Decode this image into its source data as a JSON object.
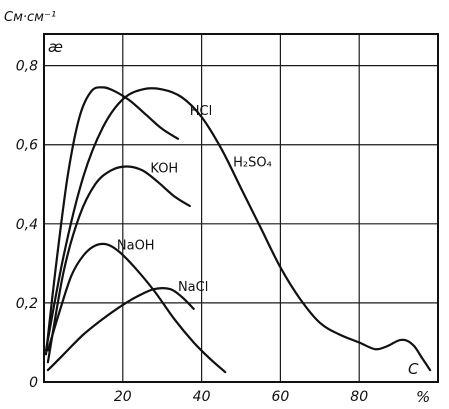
{
  "chart_data": {
    "type": "line",
    "title": "",
    "xlabel": "C",
    "x_unit": "%",
    "ylabel": "æ",
    "y_unit": "См·см⁻¹",
    "xlim": [
      0,
      100
    ],
    "ylim": [
      0,
      0.88
    ],
    "grid": true,
    "x_ticks": [
      {
        "value": 20,
        "label": "20"
      },
      {
        "value": 40,
        "label": "40"
      },
      {
        "value": 60,
        "label": "60"
      },
      {
        "value": 80,
        "label": "80"
      }
    ],
    "y_ticks": [
      {
        "value": 0,
        "label": "0"
      },
      {
        "value": 0.2,
        "label": "0,2"
      },
      {
        "value": 0.4,
        "label": "0,4"
      },
      {
        "value": 0.6,
        "label": "0,6"
      },
      {
        "value": 0.8,
        "label": "0,8"
      }
    ],
    "series": [
      {
        "name": "HCl",
        "label_text": "HCl",
        "label_at": [
          37,
          0.675
        ],
        "points": [
          [
            0.5,
            0.07
          ],
          [
            3,
            0.29
          ],
          [
            6,
            0.52
          ],
          [
            9,
            0.67
          ],
          [
            12,
            0.735
          ],
          [
            15,
            0.745
          ],
          [
            18,
            0.735
          ],
          [
            22,
            0.71
          ],
          [
            26,
            0.675
          ],
          [
            30,
            0.64
          ],
          [
            34,
            0.615
          ]
        ]
      },
      {
        "name": "H2SO4",
        "label_text": "H₂SO₄",
        "label_at": [
          48,
          0.545
        ],
        "points": [
          [
            0.5,
            0.08
          ],
          [
            5,
            0.32
          ],
          [
            10,
            0.52
          ],
          [
            15,
            0.645
          ],
          [
            20,
            0.715
          ],
          [
            25,
            0.74
          ],
          [
            30,
            0.74
          ],
          [
            35,
            0.72
          ],
          [
            40,
            0.67
          ],
          [
            45,
            0.59
          ],
          [
            50,
            0.49
          ],
          [
            55,
            0.39
          ],
          [
            60,
            0.29
          ],
          [
            65,
            0.21
          ],
          [
            70,
            0.15
          ],
          [
            75,
            0.12
          ],
          [
            80,
            0.1
          ],
          [
            84,
            0.083
          ],
          [
            87,
            0.09
          ],
          [
            90,
            0.105
          ],
          [
            92,
            0.105
          ],
          [
            94,
            0.09
          ],
          [
            96,
            0.06
          ],
          [
            98,
            0.03
          ]
        ]
      },
      {
        "name": "KOH",
        "label_text": "KOH",
        "label_at": [
          27,
          0.53
        ],
        "points": [
          [
            1,
            0.05
          ],
          [
            5,
            0.28
          ],
          [
            9,
            0.42
          ],
          [
            13,
            0.5
          ],
          [
            17,
            0.535
          ],
          [
            21,
            0.545
          ],
          [
            25,
            0.535
          ],
          [
            29,
            0.505
          ],
          [
            33,
            0.47
          ],
          [
            37,
            0.445
          ]
        ]
      },
      {
        "name": "NaOH",
        "label_text": "NaOH",
        "label_at": [
          18.5,
          0.335
        ],
        "points": [
          [
            1,
            0.08
          ],
          [
            4,
            0.18
          ],
          [
            7,
            0.27
          ],
          [
            10,
            0.32
          ],
          [
            13,
            0.345
          ],
          [
            16,
            0.348
          ],
          [
            19,
            0.33
          ],
          [
            23,
            0.29
          ],
          [
            28,
            0.23
          ],
          [
            33,
            0.16
          ],
          [
            38,
            0.1
          ],
          [
            42,
            0.06
          ],
          [
            46,
            0.025
          ]
        ]
      },
      {
        "name": "NaCl",
        "label_text": "NaCl",
        "label_at": [
          34,
          0.23
        ],
        "points": [
          [
            1,
            0.03
          ],
          [
            5,
            0.07
          ],
          [
            10,
            0.12
          ],
          [
            15,
            0.16
          ],
          [
            20,
            0.195
          ],
          [
            24,
            0.218
          ],
          [
            28,
            0.235
          ],
          [
            32,
            0.235
          ],
          [
            35,
            0.215
          ],
          [
            38,
            0.185
          ]
        ]
      }
    ]
  }
}
